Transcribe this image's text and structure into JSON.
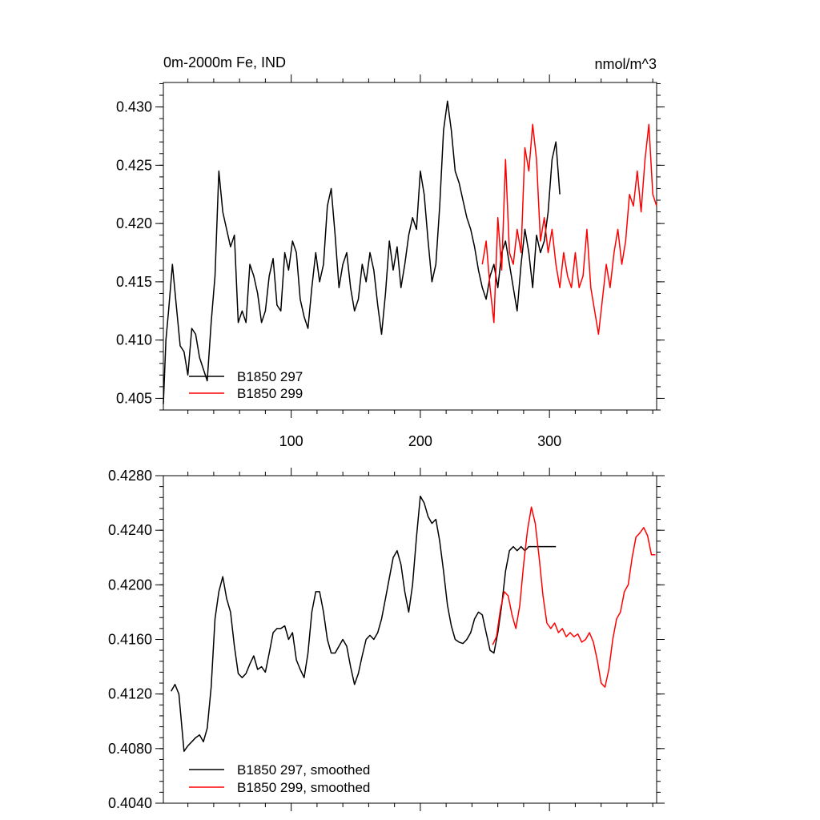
{
  "chart_data": [
    {
      "type": "line",
      "title_left": "0m-2000m Fe, IND",
      "title_right": "nmol/m^3",
      "xlim": [
        1,
        383
      ],
      "ylim": [
        0.404,
        0.4321
      ],
      "yticks": [
        0.405,
        0.41,
        0.415,
        0.42,
        0.425,
        0.43
      ],
      "ytick_labels": [
        "0.405",
        "0.410",
        "0.415",
        "0.420",
        "0.425",
        "0.430"
      ],
      "xticks": [
        100,
        200,
        300
      ],
      "xtick_labels": [
        "100",
        "200",
        "300"
      ],
      "legend_position": "bottom-left",
      "series": [
        {
          "name": "B1850 297",
          "color": "#000000",
          "x": [
            1,
            3,
            5,
            8,
            11,
            14,
            17,
            20,
            23,
            26,
            29,
            32,
            35,
            38,
            41,
            44,
            47,
            50,
            53,
            56,
            59,
            62,
            65,
            68,
            71,
            74,
            77,
            80,
            83,
            86,
            89,
            92,
            95,
            98,
            101,
            104,
            107,
            110,
            113,
            116,
            119,
            122,
            125,
            128,
            131,
            134,
            137,
            140,
            143,
            146,
            149,
            152,
            155,
            158,
            161,
            164,
            167,
            170,
            173,
            176,
            179,
            182,
            185,
            188,
            191,
            194,
            197,
            200,
            203,
            206,
            209,
            212,
            215,
            218,
            221,
            224,
            227,
            230,
            233,
            236,
            239,
            242,
            245,
            248,
            251,
            254,
            257,
            260,
            263,
            266,
            269,
            272,
            275,
            278,
            281,
            284,
            287,
            290,
            293,
            296,
            299,
            302,
            305,
            308
          ],
          "values": [
            0.4045,
            0.41,
            0.4125,
            0.4165,
            0.413,
            0.4095,
            0.409,
            0.407,
            0.411,
            0.4105,
            0.4085,
            0.4075,
            0.4065,
            0.4115,
            0.4155,
            0.4245,
            0.421,
            0.4195,
            0.418,
            0.419,
            0.4115,
            0.4125,
            0.4115,
            0.4165,
            0.4155,
            0.414,
            0.4115,
            0.4125,
            0.4155,
            0.417,
            0.413,
            0.4125,
            0.4175,
            0.416,
            0.4185,
            0.4175,
            0.4135,
            0.412,
            0.411,
            0.4145,
            0.4175,
            0.415,
            0.4165,
            0.4215,
            0.423,
            0.419,
            0.4145,
            0.4165,
            0.4175,
            0.4145,
            0.4125,
            0.4135,
            0.4165,
            0.415,
            0.4175,
            0.416,
            0.413,
            0.4105,
            0.414,
            0.4185,
            0.416,
            0.418,
            0.4145,
            0.4165,
            0.419,
            0.4205,
            0.4195,
            0.4245,
            0.4225,
            0.4185,
            0.415,
            0.4165,
            0.4215,
            0.428,
            0.4305,
            0.428,
            0.4245,
            0.4235,
            0.422,
            0.4205,
            0.4195,
            0.418,
            0.416,
            0.4145,
            0.4135,
            0.4155,
            0.4165,
            0.4145,
            0.4175,
            0.4185,
            0.4165,
            0.4145,
            0.4125,
            0.4165,
            0.4195,
            0.4175,
            0.4145,
            0.419,
            0.4175,
            0.4185,
            0.421,
            0.4255,
            0.427,
            0.4225
          ]
        },
        {
          "name": "B1850 299",
          "color": "#ff0000",
          "x": [
            248,
            251,
            254,
            257,
            260,
            263,
            266,
            269,
            272,
            275,
            278,
            281,
            284,
            287,
            290,
            293,
            296,
            299,
            302,
            305,
            308,
            311,
            314,
            317,
            320,
            323,
            326,
            329,
            332,
            335,
            338,
            341,
            344,
            347,
            350,
            353,
            356,
            359,
            362,
            365,
            368,
            371,
            374,
            377,
            380,
            383
          ],
          "values": [
            0.4165,
            0.4185,
            0.4145,
            0.4115,
            0.4205,
            0.416,
            0.4255,
            0.4175,
            0.4165,
            0.4195,
            0.4175,
            0.4265,
            0.4245,
            0.4285,
            0.4255,
            0.4185,
            0.4205,
            0.4175,
            0.4195,
            0.4165,
            0.4145,
            0.4175,
            0.4155,
            0.4145,
            0.4175,
            0.4145,
            0.4155,
            0.4195,
            0.4145,
            0.4125,
            0.4105,
            0.4135,
            0.4165,
            0.4145,
            0.4175,
            0.4195,
            0.4165,
            0.4185,
            0.4225,
            0.4215,
            0.4245,
            0.421,
            0.4255,
            0.4285,
            0.4225,
            0.4215
          ]
        }
      ]
    },
    {
      "type": "line",
      "xlim": [
        1,
        383
      ],
      "ylim": [
        0.404,
        0.428
      ],
      "yticks": [
        0.404,
        0.408,
        0.412,
        0.416,
        0.42,
        0.424,
        0.428
      ],
      "ytick_labels": [
        "0.4040",
        "0.4080",
        "0.4120",
        "0.4160",
        "0.4200",
        "0.4240",
        "0.4280"
      ],
      "xticks": [
        100,
        200,
        300
      ],
      "legend_position": "bottom-left",
      "series": [
        {
          "name": "B1850 297, smoothed",
          "color": "#000000",
          "x": [
            7,
            10,
            13,
            17,
            20,
            23,
            26,
            29,
            32,
            35,
            38,
            41,
            44,
            47,
            50,
            53,
            56,
            59,
            62,
            65,
            68,
            71,
            74,
            77,
            80,
            83,
            86,
            89,
            92,
            95,
            98,
            101,
            104,
            107,
            110,
            113,
            116,
            119,
            122,
            125,
            128,
            131,
            134,
            137,
            140,
            143,
            146,
            149,
            152,
            155,
            158,
            161,
            164,
            167,
            170,
            173,
            176,
            179,
            182,
            185,
            188,
            191,
            194,
            197,
            200,
            203,
            206,
            209,
            212,
            215,
            218,
            221,
            224,
            227,
            230,
            233,
            236,
            239,
            242,
            245,
            248,
            251,
            254,
            257,
            260,
            263,
            266,
            269,
            272,
            275,
            278,
            281,
            284,
            287,
            290,
            293,
            296,
            299,
            302,
            305
          ],
          "values": [
            0.4122,
            0.4127,
            0.412,
            0.4078,
            0.4082,
            0.4085,
            0.4088,
            0.409,
            0.4085,
            0.4095,
            0.4125,
            0.4175,
            0.4195,
            0.4206,
            0.419,
            0.418,
            0.4155,
            0.4135,
            0.4132,
            0.4135,
            0.4142,
            0.4148,
            0.4138,
            0.414,
            0.4136,
            0.415,
            0.4165,
            0.4168,
            0.4168,
            0.417,
            0.416,
            0.4165,
            0.4145,
            0.4138,
            0.4132,
            0.415,
            0.418,
            0.4195,
            0.4195,
            0.418,
            0.416,
            0.415,
            0.415,
            0.4155,
            0.416,
            0.4155,
            0.414,
            0.4127,
            0.4135,
            0.4148,
            0.416,
            0.4163,
            0.416,
            0.4165,
            0.4175,
            0.419,
            0.4205,
            0.422,
            0.4225,
            0.4215,
            0.4195,
            0.418,
            0.42,
            0.4235,
            0.4265,
            0.426,
            0.425,
            0.4245,
            0.4248,
            0.4232,
            0.421,
            0.4185,
            0.417,
            0.416,
            0.4158,
            0.4157,
            0.416,
            0.4165,
            0.4175,
            0.418,
            0.4178,
            0.4165,
            0.4152,
            0.415,
            0.4165,
            0.4185,
            0.421,
            0.4225,
            0.4228,
            0.4225,
            0.4228,
            0.4225,
            0.4228,
            0.4228,
            0.4228,
            0.4228,
            0.4228,
            0.4228,
            0.4228,
            0.4228
          ]
        },
        {
          "name": "B1850 299, smoothed",
          "color": "#ff0000",
          "x": [
            256,
            259,
            262,
            265,
            268,
            271,
            274,
            277,
            280,
            283,
            286,
            289,
            292,
            295,
            298,
            301,
            304,
            307,
            310,
            313,
            316,
            319,
            322,
            325,
            328,
            331,
            334,
            337,
            340,
            343,
            346,
            349,
            352,
            355,
            358,
            361,
            364,
            367,
            370,
            373,
            376,
            379,
            382
          ],
          "values": [
            0.4156,
            0.4162,
            0.4182,
            0.4195,
            0.4192,
            0.4178,
            0.4168,
            0.4185,
            0.4215,
            0.424,
            0.4257,
            0.4245,
            0.422,
            0.4192,
            0.4172,
            0.4168,
            0.4172,
            0.4165,
            0.4168,
            0.4162,
            0.4165,
            0.4162,
            0.4164,
            0.4158,
            0.416,
            0.4165,
            0.4158,
            0.4145,
            0.4128,
            0.4125,
            0.4138,
            0.416,
            0.4175,
            0.418,
            0.4195,
            0.42,
            0.422,
            0.4235,
            0.4238,
            0.4242,
            0.4236,
            0.4222,
            0.4222
          ]
        }
      ]
    }
  ]
}
